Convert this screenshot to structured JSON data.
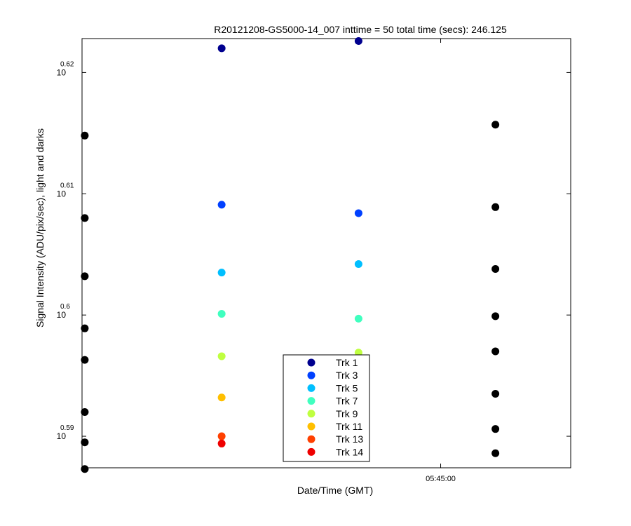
{
  "chart_data": {
    "type": "scatter",
    "title": "R20121208-GS5000-14_007 inttime = 50 total time (secs): 246.125",
    "xlabel": "Date/Time (GMT)",
    "ylabel": "Signal Intensity (ADU/pix/sec), light and darks",
    "x_ticks": [
      {
        "label": "05:45:00"
      }
    ],
    "y_scale": "log",
    "y_log10_range": [
      0.5874,
      0.6228
    ],
    "y_ticks": [
      {
        "base": "10",
        "exp": "0.59",
        "log10": 0.59
      },
      {
        "base": "10",
        "exp": "0.6",
        "log10": 0.6
      },
      {
        "base": "10",
        "exp": "0.61",
        "log10": 0.61
      },
      {
        "base": "10",
        "exp": "0.62",
        "log10": 0.62
      }
    ],
    "x_columns": [
      1,
      2,
      3,
      4
    ],
    "x_range": [
      0.98,
      4.55
    ],
    "x_tick_position": 3.6,
    "series": [
      {
        "name": "Trk 1",
        "color": "#00008f",
        "points": [
          {
            "x": 2,
            "log10y": 0.622
          },
          {
            "x": 3,
            "log10y": 0.6226
          }
        ]
      },
      {
        "name": "Trk 3",
        "color": "#0040ff",
        "points": [
          {
            "x": 2,
            "log10y": 0.6091
          },
          {
            "x": 3,
            "log10y": 0.6084
          }
        ]
      },
      {
        "name": "Trk 5",
        "color": "#00bfff",
        "points": [
          {
            "x": 2,
            "log10y": 0.6035
          },
          {
            "x": 3,
            "log10y": 0.6042
          }
        ]
      },
      {
        "name": "Trk 7",
        "color": "#40ffbf",
        "points": [
          {
            "x": 2,
            "log10y": 0.6001
          },
          {
            "x": 3,
            "log10y": 0.5997
          }
        ]
      },
      {
        "name": "Trk 9",
        "color": "#bfff40",
        "points": [
          {
            "x": 2,
            "log10y": 0.5966
          },
          {
            "x": 3,
            "log10y": 0.5969
          }
        ]
      },
      {
        "name": "Trk 11",
        "color": "#ffbf00",
        "points": [
          {
            "x": 2,
            "log10y": 0.5932
          },
          {
            "x": 3,
            "log10y": 0.5935
          }
        ]
      },
      {
        "name": "Trk 13",
        "color": "#ff4000",
        "points": [
          {
            "x": 2,
            "log10y": 0.59
          },
          {
            "x": 3,
            "log10y": 0.5908
          }
        ]
      },
      {
        "name": "Trk 14",
        "color": "#ef0000",
        "points": [
          {
            "x": 2,
            "log10y": 0.5894
          },
          {
            "x": 3,
            "log10y": 0.5908
          }
        ]
      },
      {
        "name": "",
        "color": "#000000",
        "points": [
          {
            "x": 1,
            "log10y": 0.6148
          },
          {
            "x": 1,
            "log10y": 0.608
          },
          {
            "x": 1,
            "log10y": 0.6032
          },
          {
            "x": 1,
            "log10y": 0.5989
          },
          {
            "x": 1,
            "log10y": 0.5963
          },
          {
            "x": 1,
            "log10y": 0.592
          },
          {
            "x": 1,
            "log10y": 0.5895
          },
          {
            "x": 1,
            "log10y": 0.5873
          },
          {
            "x": 4,
            "log10y": 0.6157
          },
          {
            "x": 4,
            "log10y": 0.6089
          },
          {
            "x": 4,
            "log10y": 0.6038
          },
          {
            "x": 4,
            "log10y": 0.5999
          },
          {
            "x": 4,
            "log10y": 0.597
          },
          {
            "x": 4,
            "log10y": 0.5935
          },
          {
            "x": 4,
            "log10y": 0.5906
          },
          {
            "x": 4,
            "log10y": 0.5886
          }
        ]
      }
    ],
    "legend": {
      "position": "bottom-center",
      "entries": [
        "Trk 1",
        "Trk 3",
        "Trk 5",
        "Trk 7",
        "Trk 9",
        "Trk 11",
        "Trk 13",
        "Trk 14"
      ]
    },
    "grid": false
  }
}
